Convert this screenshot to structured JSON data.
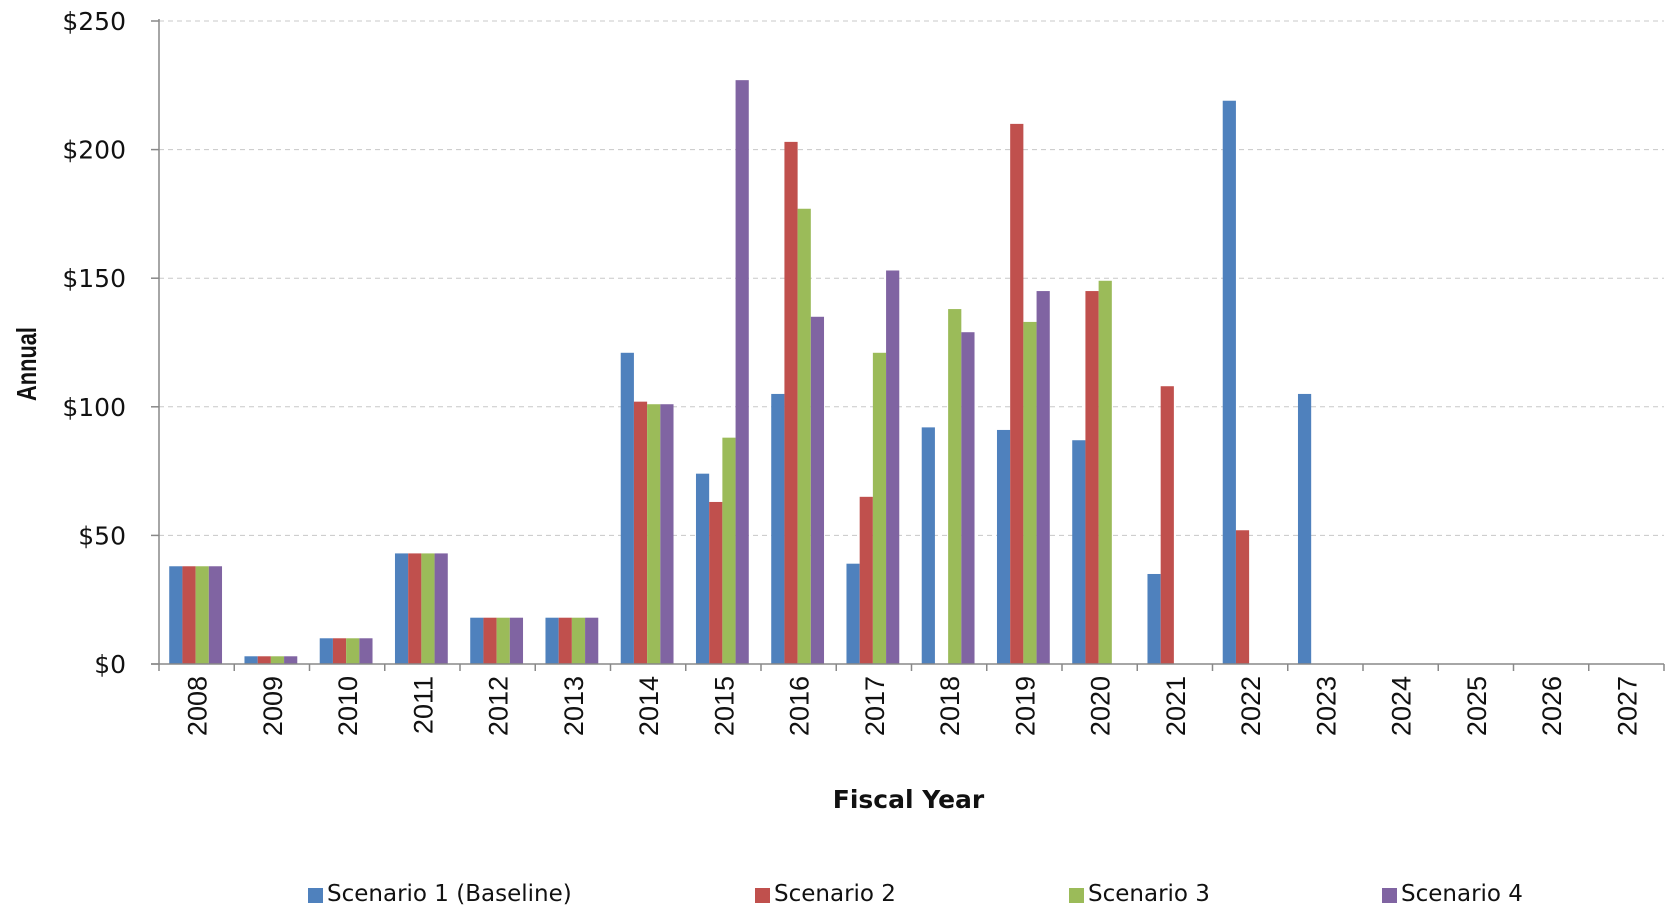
{
  "chart_data": {
    "type": "bar",
    "xlabel": "Fiscal Year",
    "ylabel": "Annual",
    "ylim": [
      0,
      250
    ],
    "yticks": [
      "$0",
      "$50",
      "$100",
      "$150",
      "$200",
      "$250"
    ],
    "grid": "horizontal dashed",
    "legend_position": "bottom",
    "categories": [
      "2008",
      "2009",
      "2010",
      "2011",
      "2012",
      "2013",
      "2014",
      "2015",
      "2016",
      "2017",
      "2018",
      "2019",
      "2020",
      "2021",
      "2022",
      "2023",
      "2024",
      "2025",
      "2026",
      "2027"
    ],
    "series": [
      {
        "name": "Scenario 1 (Baseline)",
        "color": "#4f81bd",
        "values": [
          38,
          3,
          10,
          43,
          18,
          18,
          121,
          74,
          105,
          39,
          92,
          91,
          87,
          35,
          219,
          105,
          0,
          0,
          0,
          0
        ]
      },
      {
        "name": "Scenario 2",
        "color": "#c0504d",
        "values": [
          38,
          3,
          10,
          43,
          18,
          18,
          102,
          63,
          203,
          65,
          0,
          210,
          145,
          108,
          52,
          0,
          0,
          0,
          0,
          0
        ]
      },
      {
        "name": "Scenario 3",
        "color": "#9bbb59",
        "values": [
          38,
          3,
          10,
          43,
          18,
          18,
          101,
          88,
          177,
          121,
          138,
          133,
          149,
          0,
          0,
          0,
          0,
          0,
          0,
          0
        ]
      },
      {
        "name": "Scenario 4",
        "color": "#8064a2",
        "values": [
          38,
          3,
          10,
          43,
          18,
          18,
          101,
          227,
          135,
          153,
          129,
          145,
          0,
          0,
          0,
          0,
          0,
          0,
          0,
          0
        ]
      }
    ]
  }
}
